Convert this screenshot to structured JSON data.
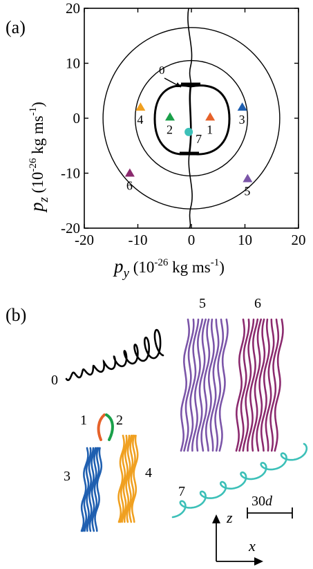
{
  "panels": {
    "a": "(a)",
    "b": "(b)"
  },
  "chart_data": {
    "type": "scatter",
    "xlabel": {
      "symbol": "p",
      "sub": "y",
      "pre": " (10",
      "exp": "-26",
      "post": " kg ms",
      "exp2": "-1",
      "close": ")"
    },
    "ylabel": {
      "symbol": "p",
      "sub": "z",
      "pre": " (10",
      "exp": "-26",
      "post": " kg ms",
      "exp2": "-1",
      "close": ")"
    },
    "xlim": [
      -20,
      20
    ],
    "ylim": [
      -20,
      20
    ],
    "xticks": [
      "-20",
      "-10",
      "0",
      "10",
      "20"
    ],
    "yticks": [
      "20",
      "10",
      "0",
      "-10",
      "-20"
    ],
    "circle_radii": [
      10.5,
      16.5
    ],
    "arrow_label": "0",
    "points": [
      {
        "id": "1",
        "x": 3.5,
        "y": 0.2,
        "color": "#e6622a",
        "marker": "triangle"
      },
      {
        "id": "2",
        "x": -4.0,
        "y": 0.2,
        "color": "#1aa04a",
        "marker": "triangle"
      },
      {
        "id": "3",
        "x": 9.5,
        "y": 2.0,
        "color": "#1f5fb0",
        "marker": "triangle"
      },
      {
        "id": "4",
        "x": -9.5,
        "y": 2.0,
        "color": "#f0a020",
        "marker": "triangle"
      },
      {
        "id": "5",
        "x": 10.5,
        "y": -11.0,
        "color": "#7b55a8",
        "marker": "triangle"
      },
      {
        "id": "6",
        "x": -11.5,
        "y": -10.0,
        "color": "#8b2a6e",
        "marker": "triangle"
      },
      {
        "id": "7",
        "x": -0.5,
        "y": -2.5,
        "color": "#3cc0b8",
        "marker": "circle"
      }
    ]
  },
  "trajectories": {
    "labels": [
      "0",
      "1",
      "2",
      "3",
      "4",
      "5",
      "6",
      "7"
    ],
    "colors": {
      "0": "#000000",
      "1": "#e6622a",
      "2": "#1aa04a",
      "3": "#1f5fb0",
      "4": "#f0a020",
      "5": "#7b55a8",
      "6": "#8b2a6e",
      "7": "#3cc0b8"
    },
    "scale_label": {
      "value": "30",
      "unit": "d"
    },
    "axis_z": "z",
    "axis_x": "x"
  }
}
